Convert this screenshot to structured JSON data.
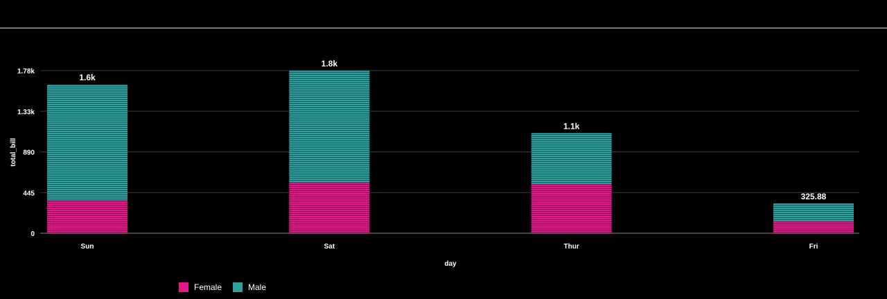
{
  "chart_data": {
    "type": "bar",
    "stacked": true,
    "categories": [
      "Sun",
      "Sat",
      "Thur",
      "Fri"
    ],
    "series": [
      {
        "name": "Female",
        "color": "#e8168b",
        "values": [
          357.7,
          551.05,
          534.89,
          127.31
        ]
      },
      {
        "name": "Male",
        "color": "#2fa0a0",
        "values": [
          1269.46,
          1227.35,
          561.44,
          198.57
        ]
      }
    ],
    "totals_labels": [
      "1.6k",
      "1.8k",
      "1.1k",
      "325.88"
    ],
    "xlabel": "day",
    "ylabel": "total_bill",
    "y_ticks": [
      0,
      445,
      890,
      1335,
      1780
    ],
    "y_tick_labels": [
      "0",
      "445",
      "890",
      "1.33k",
      "1.78k"
    ],
    "ylim": [
      0,
      1780
    ],
    "grid": true,
    "legend_position": "bottom-left"
  }
}
